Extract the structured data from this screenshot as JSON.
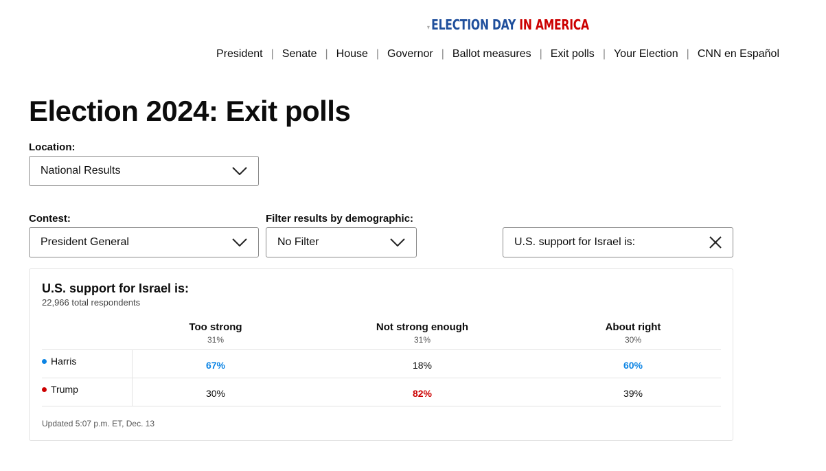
{
  "header": {
    "logo": {
      "part1": "ELECTION DAY",
      "part2": "IN AMERICA"
    },
    "nav": [
      "President",
      "Senate",
      "House",
      "Governor",
      "Ballot measures",
      "Exit polls",
      "Your Election",
      "CNN en Español"
    ]
  },
  "page_title": "Election 2024: Exit polls",
  "location": {
    "label": "Location:",
    "value": "National Results"
  },
  "contest": {
    "label": "Contest:",
    "value": "President General"
  },
  "filter": {
    "label": "Filter results by demographic:",
    "value": "No Filter"
  },
  "question_select": {
    "value": "U.S. support for Israel is:"
  },
  "card": {
    "title": "U.S. support for Israel is:",
    "respondents": "22,966 total respondents",
    "columns": [
      {
        "name": "Too strong",
        "share": "31%"
      },
      {
        "name": "Not strong enough",
        "share": "31%"
      },
      {
        "name": "About right",
        "share": "30%"
      }
    ],
    "rows": [
      {
        "name": "Harris",
        "color": "#0c84e4",
        "values": [
          "67%",
          "18%",
          "60%"
        ]
      },
      {
        "name": "Trump",
        "color": "#cc0000",
        "values": [
          "30%",
          "82%",
          "39%"
        ]
      }
    ],
    "updated": "Updated 5:07 p.m. ET, Dec. 13"
  }
}
